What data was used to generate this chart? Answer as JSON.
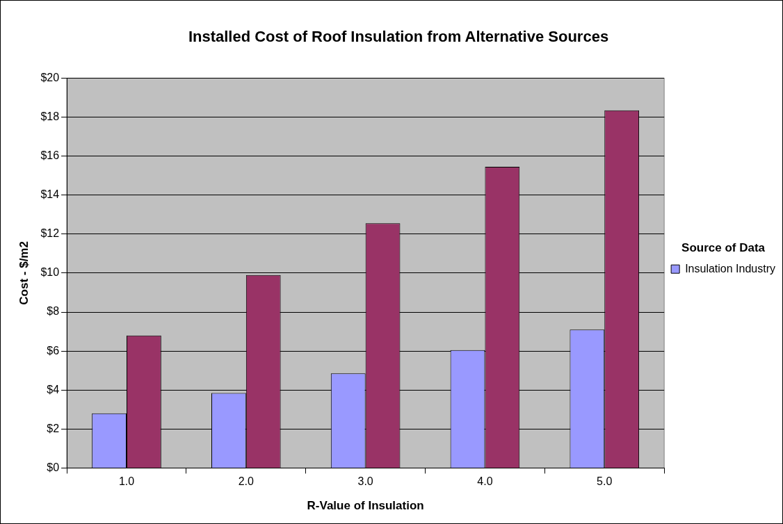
{
  "chart_data": {
    "type": "bar",
    "title": "Installed Cost of Roof Insulation from Alternative Sources",
    "xlabel": "R-Value of Insulation",
    "ylabel": "Cost - $/m2",
    "legend_title": "Source of Data",
    "categories": [
      "1.0",
      "2.0",
      "3.0",
      "4.0",
      "5.0"
    ],
    "series": [
      {
        "name": "Insulation Industry",
        "color": "#9999ff",
        "values": [
          2.8,
          3.85,
          4.85,
          6.05,
          7.1
        ]
      },
      {
        "color": "#993366",
        "values": [
          6.8,
          9.9,
          12.55,
          15.45,
          18.35
        ]
      }
    ],
    "ylim": [
      0,
      20
    ],
    "yticks": [
      {
        "value": 0,
        "label": "$0"
      },
      {
        "value": 2,
        "label": "$2"
      },
      {
        "value": 4,
        "label": "$4"
      },
      {
        "value": 6,
        "label": "$6"
      },
      {
        "value": 8,
        "label": "$8"
      },
      {
        "value": 10,
        "label": "$10"
      },
      {
        "value": 12,
        "label": "$12"
      },
      {
        "value": 14,
        "label": "$14"
      },
      {
        "value": 16,
        "label": "$16"
      },
      {
        "value": 18,
        "label": "$18"
      },
      {
        "value": 20,
        "label": "$20"
      }
    ],
    "grid": "y",
    "legend": "right"
  }
}
